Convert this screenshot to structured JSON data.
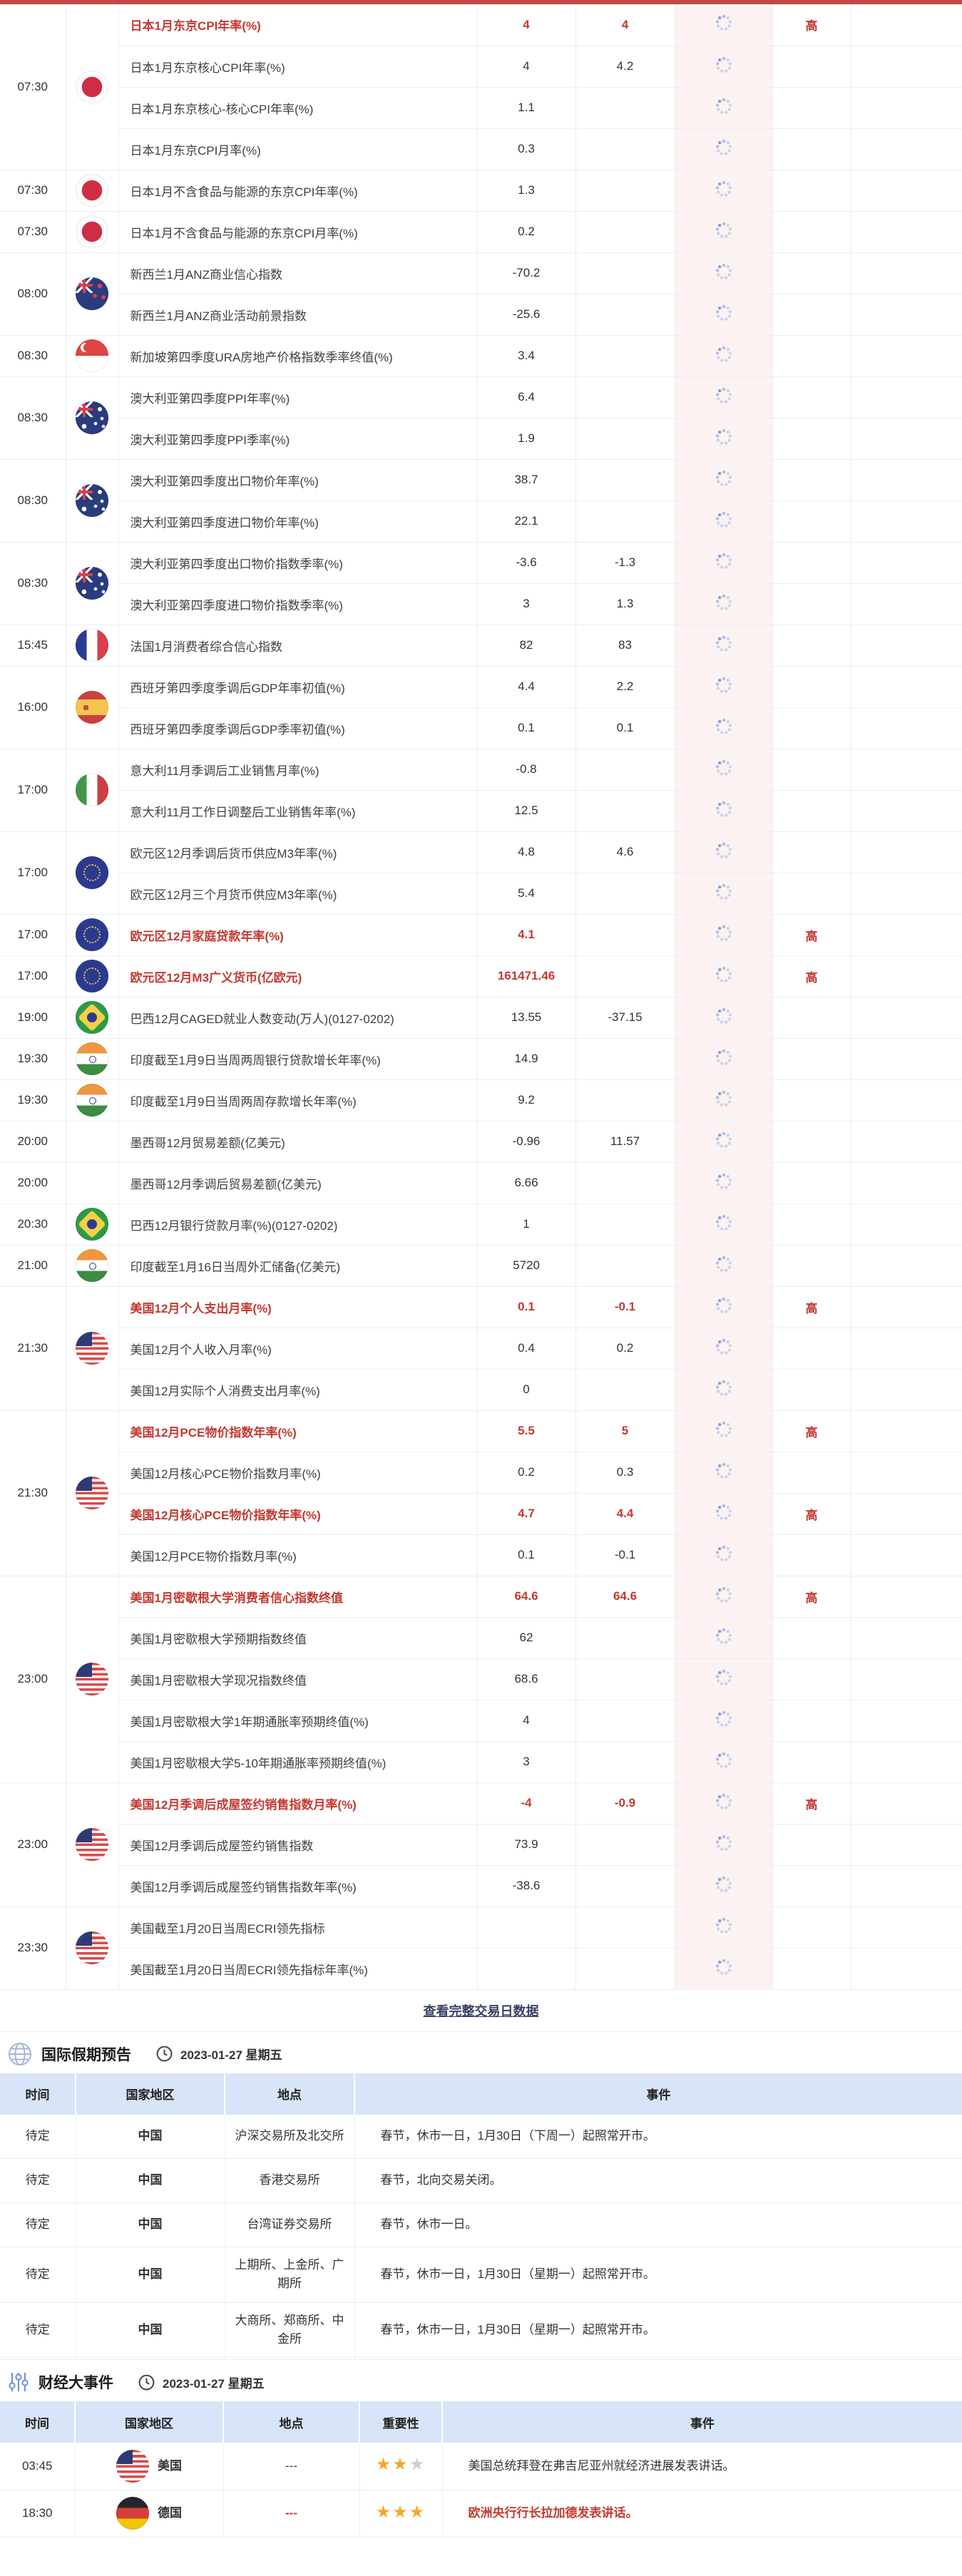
{
  "colors": {
    "accent_red": "#c23a31",
    "top_bar": "#bf4a45",
    "status_col_bg": "#fdf2f2",
    "table_header_bg": "#d8e4f7",
    "link": "#394064",
    "star_on": "#f7a823",
    "star_off": "#cfcfcf"
  },
  "icons": {
    "status": "loading-spinner-icon",
    "holiday_section": "globe-icon",
    "events_section": "sliders-icon",
    "date": "clock-icon",
    "importance": "star-icon"
  },
  "calendar": {
    "high_label": "高",
    "view_all": "查看完整交易日数据",
    "groups": [
      {
        "time": "07:30",
        "flag": "jp",
        "rows": [
          {
            "name": "日本1月东京CPI年率(%)",
            "v1": "4",
            "v2": "4",
            "high": true
          },
          {
            "name": "日本1月东京核心CPI年率(%)",
            "v1": "4",
            "v2": "4.2",
            "high": false
          },
          {
            "name": "日本1月东京核心-核心CPI年率(%)",
            "v1": "1.1",
            "v2": "",
            "high": false
          },
          {
            "name": "日本1月东京CPI月率(%)",
            "v1": "0.3",
            "v2": "",
            "high": false
          }
        ]
      },
      {
        "time": "07:30",
        "flag": "jp",
        "rows": [
          {
            "name": "日本1月不含食品与能源的东京CPI年率(%)",
            "v1": "1.3",
            "v2": "",
            "high": false
          }
        ]
      },
      {
        "time": "07:30",
        "flag": "jp",
        "rows": [
          {
            "name": "日本1月不含食品与能源的东京CPI月率(%)",
            "v1": "0.2",
            "v2": "",
            "high": false
          }
        ]
      },
      {
        "time": "08:00",
        "flag": "nz",
        "rows": [
          {
            "name": "新西兰1月ANZ商业信心指数",
            "v1": "-70.2",
            "v2": "",
            "high": false
          },
          {
            "name": "新西兰1月ANZ商业活动前景指数",
            "v1": "-25.6",
            "v2": "",
            "high": false
          }
        ]
      },
      {
        "time": "08:30",
        "flag": "sg",
        "rows": [
          {
            "name": "新加坡第四季度URA房地产价格指数季率终值(%)",
            "v1": "3.4",
            "v2": "",
            "high": false
          }
        ]
      },
      {
        "time": "08:30",
        "flag": "au",
        "rows": [
          {
            "name": "澳大利亚第四季度PPI年率(%)",
            "v1": "6.4",
            "v2": "",
            "high": false
          },
          {
            "name": "澳大利亚第四季度PPI季率(%)",
            "v1": "1.9",
            "v2": "",
            "high": false
          }
        ]
      },
      {
        "time": "08:30",
        "flag": "au",
        "rows": [
          {
            "name": "澳大利亚第四季度出口物价年率(%)",
            "v1": "38.7",
            "v2": "",
            "high": false
          },
          {
            "name": "澳大利亚第四季度进口物价年率(%)",
            "v1": "22.1",
            "v2": "",
            "high": false
          }
        ]
      },
      {
        "time": "08:30",
        "flag": "au",
        "rows": [
          {
            "name": "澳大利亚第四季度出口物价指数季率(%)",
            "v1": "-3.6",
            "v2": "-1.3",
            "high": false
          },
          {
            "name": "澳大利亚第四季度进口物价指数季率(%)",
            "v1": "3",
            "v2": "1.3",
            "high": false
          }
        ]
      },
      {
        "time": "15:45",
        "flag": "fr",
        "rows": [
          {
            "name": "法国1月消费者综合信心指数",
            "v1": "82",
            "v2": "83",
            "high": false
          }
        ]
      },
      {
        "time": "16:00",
        "flag": "es",
        "rows": [
          {
            "name": "西班牙第四季度季调后GDP年率初值(%)",
            "v1": "4.4",
            "v2": "2.2",
            "high": false
          },
          {
            "name": "西班牙第四季度季调后GDP季率初值(%)",
            "v1": "0.1",
            "v2": "0.1",
            "high": false
          }
        ]
      },
      {
        "time": "17:00",
        "flag": "it",
        "rows": [
          {
            "name": "意大利11月季调后工业销售月率(%)",
            "v1": "-0.8",
            "v2": "",
            "high": false
          },
          {
            "name": "意大利11月工作日调整后工业销售年率(%)",
            "v1": "12.5",
            "v2": "",
            "high": false
          }
        ]
      },
      {
        "time": "17:00",
        "flag": "eu",
        "rows": [
          {
            "name": "欧元区12月季调后货币供应M3年率(%)",
            "v1": "4.8",
            "v2": "4.6",
            "high": false
          },
          {
            "name": "欧元区12月三个月货币供应M3年率(%)",
            "v1": "5.4",
            "v2": "",
            "high": false
          }
        ]
      },
      {
        "time": "17:00",
        "flag": "eu",
        "rows": [
          {
            "name": "欧元区12月家庭贷款年率(%)",
            "v1": "4.1",
            "v2": "",
            "high": true
          }
        ]
      },
      {
        "time": "17:00",
        "flag": "eu",
        "rows": [
          {
            "name": "欧元区12月M3广义货币(亿欧元)",
            "v1": "161471.46",
            "v2": "",
            "high": true
          }
        ]
      },
      {
        "time": "19:00",
        "flag": "br",
        "rows": [
          {
            "name": "巴西12月CAGED就业人数变动(万人)(0127-0202)",
            "v1": "13.55",
            "v2": "-37.15",
            "high": false
          }
        ]
      },
      {
        "time": "19:30",
        "flag": "in",
        "rows": [
          {
            "name": "印度截至1月9日当周两周银行贷款增长年率(%)",
            "v1": "14.9",
            "v2": "",
            "high": false
          }
        ]
      },
      {
        "time": "19:30",
        "flag": "in",
        "rows": [
          {
            "name": "印度截至1月9日当周两周存款增长年率(%)",
            "v1": "9.2",
            "v2": "",
            "high": false
          }
        ]
      },
      {
        "time": "20:00",
        "flag": "",
        "rows": [
          {
            "name": "墨西哥12月贸易差额(亿美元)",
            "v1": "-0.96",
            "v2": "11.57",
            "high": false
          }
        ]
      },
      {
        "time": "20:00",
        "flag": "",
        "rows": [
          {
            "name": "墨西哥12月季调后贸易差额(亿美元)",
            "v1": "6.66",
            "v2": "",
            "high": false
          }
        ]
      },
      {
        "time": "20:30",
        "flag": "br",
        "rows": [
          {
            "name": "巴西12月银行贷款月率(%)(0127-0202)",
            "v1": "1",
            "v2": "",
            "high": false
          }
        ]
      },
      {
        "time": "21:00",
        "flag": "in",
        "rows": [
          {
            "name": "印度截至1月16日当周外汇储备(亿美元)",
            "v1": "5720",
            "v2": "",
            "high": false
          }
        ]
      },
      {
        "time": "21:30",
        "flag": "us",
        "rows": [
          {
            "name": "美国12月个人支出月率(%)",
            "v1": "0.1",
            "v2": "-0.1",
            "high": true
          },
          {
            "name": "美国12月个人收入月率(%)",
            "v1": "0.4",
            "v2": "0.2",
            "high": false
          },
          {
            "name": "美国12月实际个人消费支出月率(%)",
            "v1": "0",
            "v2": "",
            "high": false
          }
        ]
      },
      {
        "time": "21:30",
        "flag": "us",
        "rows": [
          {
            "name": "美国12月PCE物价指数年率(%)",
            "v1": "5.5",
            "v2": "5",
            "high": true
          },
          {
            "name": "美国12月核心PCE物价指数月率(%)",
            "v1": "0.2",
            "v2": "0.3",
            "high": false
          },
          {
            "name": "美国12月核心PCE物价指数年率(%)",
            "v1": "4.7",
            "v2": "4.4",
            "high": true
          },
          {
            "name": "美国12月PCE物价指数月率(%)",
            "v1": "0.1",
            "v2": "-0.1",
            "high": false
          }
        ]
      },
      {
        "time": "23:00",
        "flag": "us",
        "rows": [
          {
            "name": "美国1月密歇根大学消费者信心指数终值",
            "v1": "64.6",
            "v2": "64.6",
            "high": true
          },
          {
            "name": "美国1月密歇根大学预期指数终值",
            "v1": "62",
            "v2": "",
            "high": false
          },
          {
            "name": "美国1月密歇根大学现况指数终值",
            "v1": "68.6",
            "v2": "",
            "high": false
          },
          {
            "name": "美国1月密歇根大学1年期通胀率预期终值(%)",
            "v1": "4",
            "v2": "",
            "high": false
          },
          {
            "name": "美国1月密歇根大学5-10年期通胀率预期终值(%)",
            "v1": "3",
            "v2": "",
            "high": false
          }
        ]
      },
      {
        "time": "23:00",
        "flag": "us",
        "rows": [
          {
            "name": "美国12月季调后成屋签约销售指数月率(%)",
            "v1": "-4",
            "v2": "-0.9",
            "high": true
          },
          {
            "name": "美国12月季调后成屋签约销售指数",
            "v1": "73.9",
            "v2": "",
            "high": false
          },
          {
            "name": "美国12月季调后成屋签约销售指数年率(%)",
            "v1": "-38.6",
            "v2": "",
            "high": false
          }
        ]
      },
      {
        "time": "23:30",
        "flag": "us",
        "rows": [
          {
            "name": "美国截至1月20日当周ECRI领先指标",
            "v1": "",
            "v2": "",
            "high": false
          },
          {
            "name": "美国截至1月20日当周ECRI领先指标年率(%)",
            "v1": "",
            "v2": "",
            "high": false
          }
        ]
      }
    ]
  },
  "holiday_section": {
    "title": "国际假期预告",
    "date": "2023-01-27 星期五",
    "headers": [
      "时间",
      "国家地区",
      "地点",
      "事件"
    ],
    "rows": [
      {
        "time": "待定",
        "country": "中国",
        "place": "沪深交易所及北交所",
        "event": "春节，休市一日，1月30日（下周一）起照常开市。"
      },
      {
        "time": "待定",
        "country": "中国",
        "place": "香港交易所",
        "event": "春节，北向交易关闭。"
      },
      {
        "time": "待定",
        "country": "中国",
        "place": "台湾证券交易所",
        "event": "春节，休市一日。"
      },
      {
        "time": "待定",
        "country": "中国",
        "place": "上期所、上金所、广期所",
        "event": "春节，休市一日，1月30日（星期一）起照常开市。"
      },
      {
        "time": "待定",
        "country": "中国",
        "place": "大商所、郑商所、中金所",
        "event": "春节，休市一日，1月30日（星期一）起照常开市。"
      }
    ]
  },
  "events_section": {
    "title": "财经大事件",
    "date": "2023-01-27 星期五",
    "headers": [
      "时间",
      "国家地区",
      "地点",
      "重要性",
      "事件"
    ],
    "rows": [
      {
        "time": "03:45",
        "flag": "us",
        "country": "美国",
        "place": "---",
        "stars": 2,
        "stars_total": 3,
        "event": "美国总统拜登在弗吉尼亚州就经济进展发表讲话。",
        "red": false
      },
      {
        "time": "18:30",
        "flag": "de",
        "country": "德国",
        "place": "---",
        "stars": 3,
        "stars_total": 3,
        "event": "欧洲央行行长拉加德发表讲话。",
        "red": true
      }
    ]
  }
}
